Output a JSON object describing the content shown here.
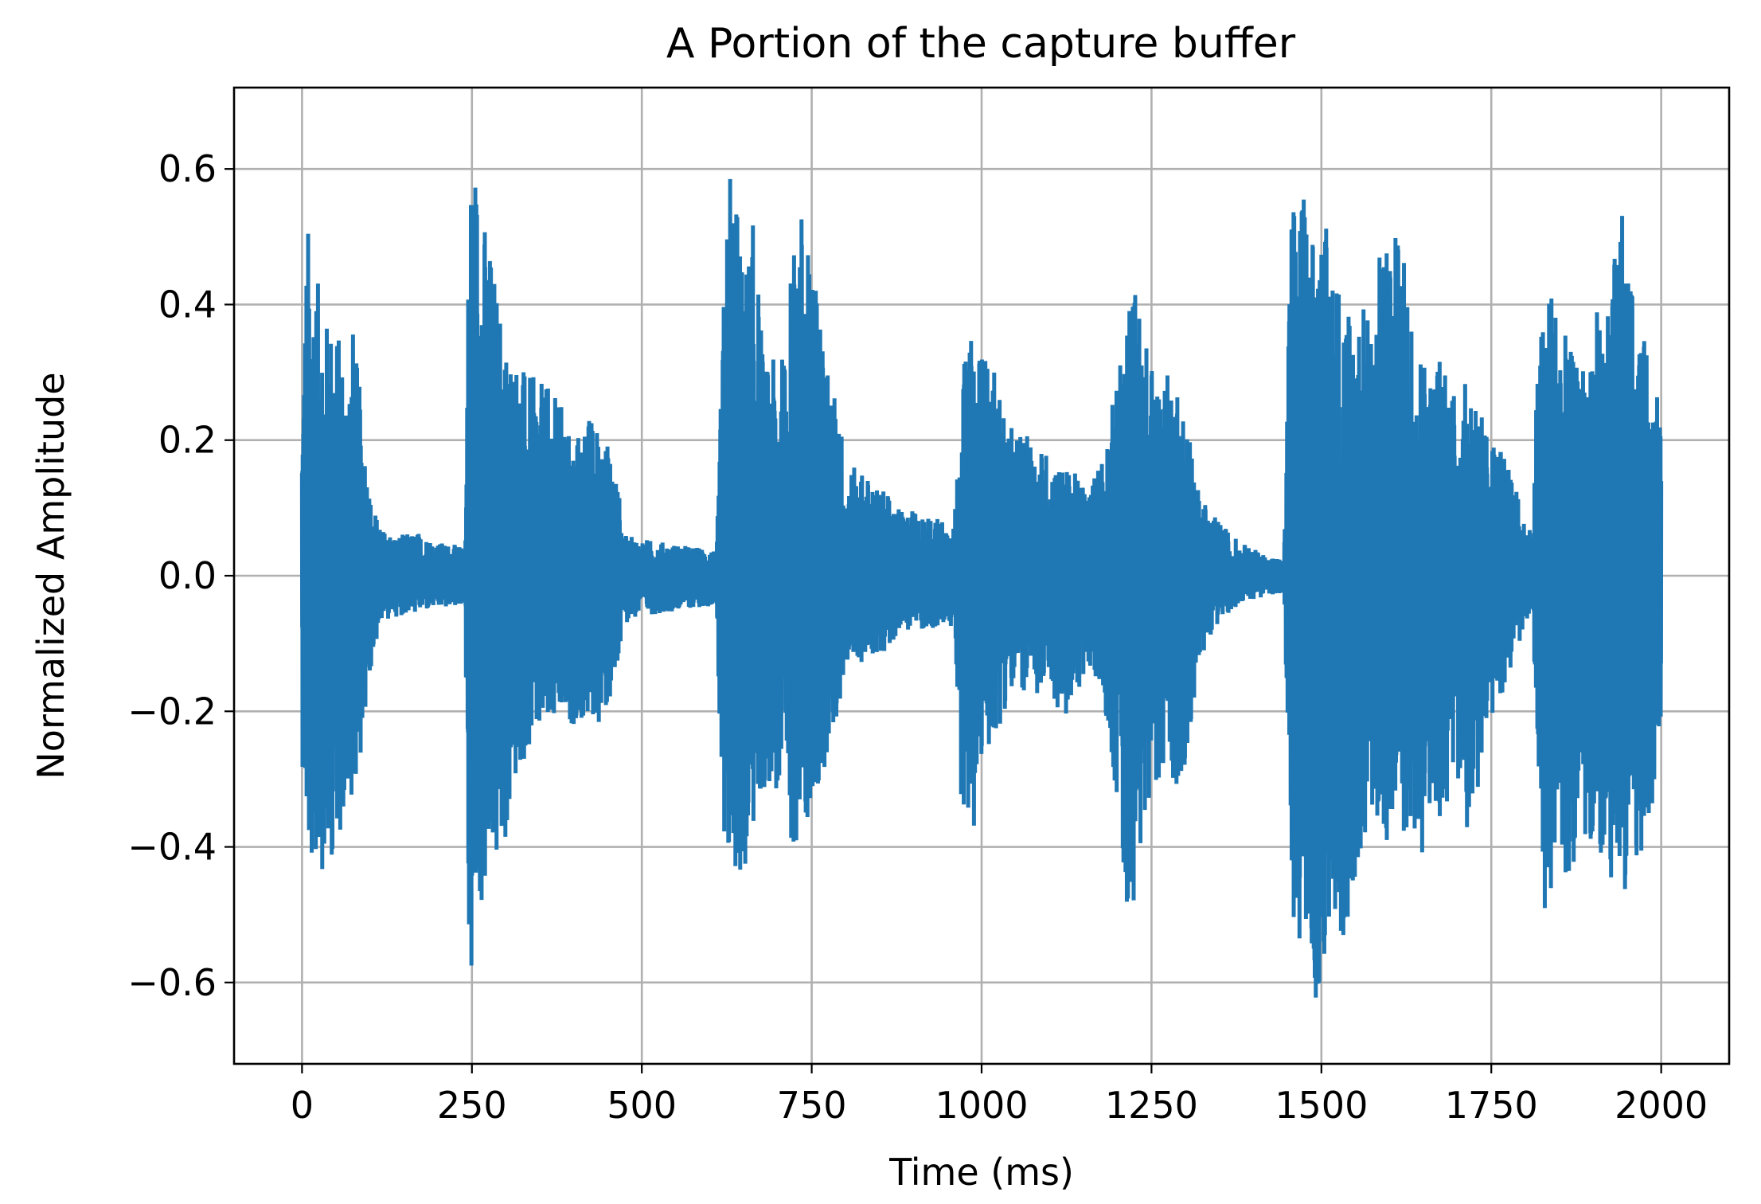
{
  "chart_data": {
    "type": "line",
    "title": "A Portion of the capture buffer",
    "xlabel": "Time (ms)",
    "ylabel": "Normalized Amplitude",
    "xlim": [
      -100,
      2100
    ],
    "ylim": [
      -0.72,
      0.72
    ],
    "grid": true,
    "legend": "none",
    "line_color": "#1f77b4",
    "x_ticks": [
      {
        "value": 0,
        "label": "0"
      },
      {
        "value": 250,
        "label": "250"
      },
      {
        "value": 500,
        "label": "500"
      },
      {
        "value": 750,
        "label": "750"
      },
      {
        "value": 1000,
        "label": "1000"
      },
      {
        "value": 1250,
        "label": "1250"
      },
      {
        "value": 1500,
        "label": "1500"
      },
      {
        "value": 1750,
        "label": "1750"
      },
      {
        "value": 2000,
        "label": "2000"
      }
    ],
    "y_ticks": [
      {
        "value": 0.6,
        "label": "0.6"
      },
      {
        "value": 0.4,
        "label": "0.4"
      },
      {
        "value": 0.2,
        "label": "0.2"
      },
      {
        "value": 0.0,
        "label": "0.0"
      },
      {
        "value": -0.2,
        "label": "−0.2"
      },
      {
        "value": -0.4,
        "label": "−0.4"
      },
      {
        "value": -0.6,
        "label": "−0.6"
      }
    ],
    "series": [
      {
        "x_range": [
          0,
          2000
        ],
        "envelope_upper": [
          [
            0,
            0.26
          ],
          [
            8,
            0.53
          ],
          [
            20,
            0.45
          ],
          [
            35,
            0.38
          ],
          [
            50,
            0.38
          ],
          [
            65,
            0.3
          ],
          [
            75,
            0.37
          ],
          [
            90,
            0.23
          ],
          [
            100,
            0.12
          ],
          [
            115,
            0.07
          ],
          [
            140,
            0.06
          ],
          [
            170,
            0.065
          ],
          [
            200,
            0.05
          ],
          [
            230,
            0.045
          ],
          [
            240,
            0.04
          ],
          [
            246,
            0.6
          ],
          [
            255,
            0.63
          ],
          [
            265,
            0.55
          ],
          [
            280,
            0.47
          ],
          [
            300,
            0.35
          ],
          [
            330,
            0.3
          ],
          [
            360,
            0.28
          ],
          [
            380,
            0.26
          ],
          [
            400,
            0.2
          ],
          [
            420,
            0.24
          ],
          [
            440,
            0.22
          ],
          [
            460,
            0.17
          ],
          [
            475,
            0.06
          ],
          [
            500,
            0.055
          ],
          [
            530,
            0.05
          ],
          [
            560,
            0.045
          ],
          [
            600,
            0.04
          ],
          [
            610,
            0.035
          ],
          [
            620,
            0.4
          ],
          [
            630,
            0.65
          ],
          [
            650,
            0.45
          ],
          [
            665,
            0.53
          ],
          [
            680,
            0.31
          ],
          [
            710,
            0.33
          ],
          [
            730,
            0.59
          ],
          [
            740,
            0.5
          ],
          [
            760,
            0.44
          ],
          [
            775,
            0.29
          ],
          [
            790,
            0.26
          ],
          [
            800,
            0.16
          ],
          [
            820,
            0.16
          ],
          [
            840,
            0.14
          ],
          [
            860,
            0.12
          ],
          [
            880,
            0.1
          ],
          [
            960,
            0.08
          ],
          [
            970,
            0.3
          ],
          [
            990,
            0.37
          ],
          [
            1000,
            0.34
          ],
          [
            1020,
            0.3
          ],
          [
            1040,
            0.22
          ],
          [
            1060,
            0.21
          ],
          [
            1080,
            0.2
          ],
          [
            1100,
            0.18
          ],
          [
            1120,
            0.16
          ],
          [
            1140,
            0.15
          ],
          [
            1160,
            0.13
          ],
          [
            1180,
            0.2
          ],
          [
            1200,
            0.29
          ],
          [
            1215,
            0.4
          ],
          [
            1225,
            0.44
          ],
          [
            1245,
            0.33
          ],
          [
            1260,
            0.3
          ],
          [
            1285,
            0.3
          ],
          [
            1300,
            0.25
          ],
          [
            1320,
            0.12
          ],
          [
            1340,
            0.09
          ],
          [
            1380,
            0.05
          ],
          [
            1420,
            0.03
          ],
          [
            1445,
            0.025
          ],
          [
            1455,
            0.55
          ],
          [
            1470,
            0.57
          ],
          [
            1490,
            0.53
          ],
          [
            1500,
            0.55
          ],
          [
            1520,
            0.46
          ],
          [
            1550,
            0.4
          ],
          [
            1580,
            0.4
          ],
          [
            1590,
            0.55
          ],
          [
            1620,
            0.48
          ],
          [
            1640,
            0.37
          ],
          [
            1660,
            0.3
          ],
          [
            1680,
            0.35
          ],
          [
            1700,
            0.25
          ],
          [
            1720,
            0.31
          ],
          [
            1740,
            0.22
          ],
          [
            1760,
            0.2
          ],
          [
            1780,
            0.15
          ],
          [
            1800,
            0.08
          ],
          [
            1812,
            0.07
          ],
          [
            1815,
            0.25
          ],
          [
            1830,
            0.46
          ],
          [
            1850,
            0.4
          ],
          [
            1860,
            0.35
          ],
          [
            1880,
            0.3
          ],
          [
            1900,
            0.4
          ],
          [
            1920,
            0.38
          ],
          [
            1940,
            0.55
          ],
          [
            1960,
            0.4
          ],
          [
            1980,
            0.33
          ],
          [
            2000,
            0.31
          ]
        ],
        "envelope_lower": [
          [
            0,
            -0.27
          ],
          [
            10,
            -0.45
          ],
          [
            25,
            -0.42
          ],
          [
            35,
            -0.45
          ],
          [
            50,
            -0.4
          ],
          [
            65,
            -0.35
          ],
          [
            75,
            -0.32
          ],
          [
            90,
            -0.25
          ],
          [
            100,
            -0.15
          ],
          [
            115,
            -0.07
          ],
          [
            140,
            -0.06
          ],
          [
            170,
            -0.055
          ],
          [
            200,
            -0.05
          ],
          [
            230,
            -0.045
          ],
          [
            240,
            -0.04
          ],
          [
            246,
            -0.66
          ],
          [
            255,
            -0.55
          ],
          [
            275,
            -0.45
          ],
          [
            300,
            -0.4
          ],
          [
            320,
            -0.28
          ],
          [
            360,
            -0.23
          ],
          [
            400,
            -0.22
          ],
          [
            440,
            -0.22
          ],
          [
            460,
            -0.18
          ],
          [
            475,
            -0.07
          ],
          [
            500,
            -0.06
          ],
          [
            530,
            -0.055
          ],
          [
            560,
            -0.05
          ],
          [
            600,
            -0.045
          ],
          [
            610,
            -0.04
          ],
          [
            620,
            -0.53
          ],
          [
            630,
            -0.43
          ],
          [
            650,
            -0.46
          ],
          [
            665,
            -0.38
          ],
          [
            690,
            -0.3
          ],
          [
            720,
            -0.4
          ],
          [
            740,
            -0.38
          ],
          [
            760,
            -0.33
          ],
          [
            775,
            -0.25
          ],
          [
            790,
            -0.21
          ],
          [
            800,
            -0.13
          ],
          [
            820,
            -0.13
          ],
          [
            840,
            -0.12
          ],
          [
            860,
            -0.11
          ],
          [
            880,
            -0.08
          ],
          [
            960,
            -0.08
          ],
          [
            970,
            -0.33
          ],
          [
            990,
            -0.4
          ],
          [
            1000,
            -0.28
          ],
          [
            1020,
            -0.24
          ],
          [
            1040,
            -0.18
          ],
          [
            1060,
            -0.17
          ],
          [
            1080,
            -0.19
          ],
          [
            1100,
            -0.16
          ],
          [
            1120,
            -0.23
          ],
          [
            1140,
            -0.17
          ],
          [
            1160,
            -0.15
          ],
          [
            1180,
            -0.18
          ],
          [
            1200,
            -0.35
          ],
          [
            1215,
            -0.52
          ],
          [
            1230,
            -0.45
          ],
          [
            1250,
            -0.3
          ],
          [
            1280,
            -0.31
          ],
          [
            1300,
            -0.31
          ],
          [
            1320,
            -0.13
          ],
          [
            1340,
            -0.08
          ],
          [
            1380,
            -0.04
          ],
          [
            1420,
            -0.03
          ],
          [
            1445,
            -0.025
          ],
          [
            1455,
            -0.5
          ],
          [
            1470,
            -0.55
          ],
          [
            1495,
            -0.66
          ],
          [
            1510,
            -0.53
          ],
          [
            1530,
            -0.55
          ],
          [
            1560,
            -0.4
          ],
          [
            1580,
            -0.35
          ],
          [
            1600,
            -0.42
          ],
          [
            1620,
            -0.38
          ],
          [
            1640,
            -0.41
          ],
          [
            1660,
            -0.42
          ],
          [
            1680,
            -0.35
          ],
          [
            1700,
            -0.3
          ],
          [
            1720,
            -0.43
          ],
          [
            1740,
            -0.23
          ],
          [
            1760,
            -0.19
          ],
          [
            1780,
            -0.14
          ],
          [
            1800,
            -0.07
          ],
          [
            1812,
            -0.06
          ],
          [
            1815,
            -0.22
          ],
          [
            1830,
            -0.56
          ],
          [
            1850,
            -0.4
          ],
          [
            1870,
            -0.5
          ],
          [
            1880,
            -0.38
          ],
          [
            1900,
            -0.4
          ],
          [
            1920,
            -0.43
          ],
          [
            1940,
            -0.49
          ],
          [
            1960,
            -0.45
          ],
          [
            1980,
            -0.4
          ],
          [
            2000,
            -0.21
          ]
        ]
      }
    ]
  }
}
